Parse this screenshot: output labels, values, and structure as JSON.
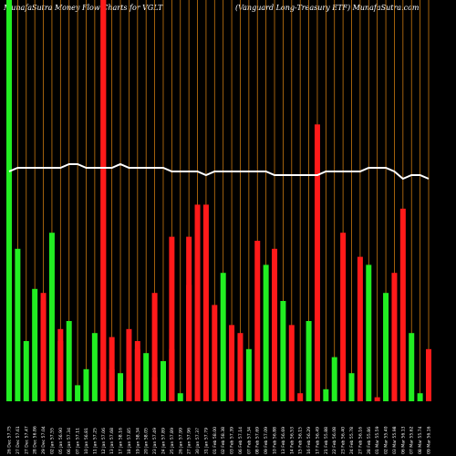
{
  "header": {
    "title_left": "MunafaSutra  Money Flow  Charts for VGLT",
    "title_right": "(Vanguard Long-Treasury ETF) MunafaSutra.com"
  },
  "colors": {
    "background": "#000000",
    "up": "#22ee22",
    "down": "#ff1a1a",
    "grid": "#c87810",
    "line": "#ffffff"
  },
  "chart_data": {
    "type": "bar",
    "title": "MunafaSutra  Money Flow  Charts for VGLT",
    "subtitle": "(Vanguard Long-Treasury ETF) MunafaSutra.com",
    "ylim": [
      0,
      100
    ],
    "grid": true,
    "categories": [
      "26 Dec 57.75",
      "27 Dec 57.61",
      "27 Dec 57.47",
      "28 Dec 56.86",
      "29 Dec 57.04",
      "02 Jan 57.55",
      "05 Jan 56.90",
      "06 Jan 57.34",
      "07 Jan 57.11",
      "10 Jan 56.81",
      "11 Jan 57.25",
      "12 Jan 57.06",
      "13 Jan 57.68",
      "17 Jan 58.16",
      "18 Jan 57.85",
      "19 Jan 58.34",
      "20 Jan 58.05",
      "23 Jan 57.49",
      "24 Jan 57.89",
      "25 Jan 57.89",
      "26 Jan 57.99",
      "27 Jan 57.96",
      "30 Jan 57.37",
      "31 Jan 57.79",
      "01 Feb 58.00",
      "02 Feb 58.38",
      "03 Feb 57.39",
      "06 Feb 57.14",
      "07 Feb 57.34",
      "08 Feb 57.69",
      "09 Feb 57.09",
      "10 Feb 56.88",
      "13 Feb 56.69",
      "14 Feb 56.53",
      "15 Feb 56.15",
      "16 Feb 56.29",
      "17 Feb 56.49",
      "21 Feb 55.88",
      "22 Feb 56.08",
      "23 Feb 56.40",
      "24 Feb 55.78",
      "27 Feb 56.16",
      "28 Feb 55.86",
      "01 Mar 55.59",
      "02 Mar 55.40",
      "03 Mar 55.98",
      "06 Mar 56.13",
      "07 Mar 55.62",
      "08 Mar 55.74",
      "09 Mar 56.16"
    ],
    "values": [
      100,
      38,
      15,
      28,
      25,
      42,
      15,
      20,
      4,
      8,
      17,
      100,
      8,
      7,
      5,
      13,
      12,
      6,
      10,
      13,
      2,
      29,
      49,
      49,
      24,
      32,
      19,
      17,
      13,
      40,
      34,
      38,
      25,
      19,
      2,
      20,
      69,
      3,
      11,
      42,
      7,
      36,
      34,
      1,
      27,
      32,
      48,
      17,
      2,
      13
    ],
    "directions": [
      "up",
      "up",
      "up",
      "up",
      "down",
      "up",
      "down",
      "up",
      "up",
      "up",
      "up",
      "down",
      "down",
      "up",
      "down",
      "down",
      "up",
      "down",
      "up",
      "down",
      "up",
      "down",
      "down",
      "down",
      "down",
      "up",
      "down",
      "down",
      "up",
      "down",
      "up",
      "down",
      "up",
      "down",
      "down",
      "up",
      "down",
      "up",
      "up",
      "down",
      "up",
      "down",
      "up",
      "down",
      "up",
      "down",
      "down",
      "up",
      "up",
      "down"
    ],
    "down_values": [
      0,
      0,
      0,
      0,
      27,
      0,
      18,
      0,
      0,
      0,
      0,
      100,
      16,
      0,
      18,
      15,
      0,
      27,
      0,
      41,
      0,
      41,
      0,
      0,
      0,
      0,
      0,
      0,
      0,
      0,
      0,
      0,
      0,
      0,
      0,
      0,
      0,
      0,
      0,
      0,
      0,
      0,
      0,
      0,
      0,
      0,
      0,
      0,
      0,
      0
    ],
    "line": [
      63,
      64,
      64,
      64,
      64,
      64,
      64,
      65,
      65,
      64,
      64,
      64,
      64,
      65,
      64,
      64,
      64,
      64,
      64,
      63,
      63,
      63,
      63,
      62,
      63,
      63,
      63,
      63,
      63,
      63,
      63,
      62,
      62,
      62,
      62,
      62,
      62,
      63,
      63,
      63,
      63,
      63,
      64,
      64,
      64,
      63,
      61,
      62,
      62,
      61
    ]
  }
}
